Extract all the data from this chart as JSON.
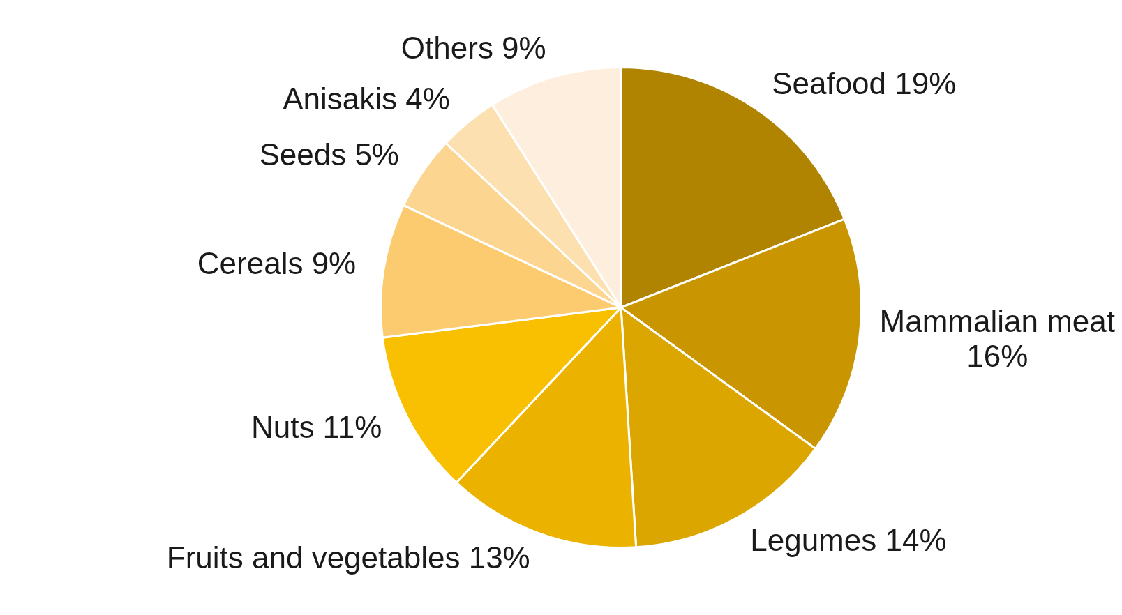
{
  "chart_data": {
    "type": "pie",
    "categories": [
      "Seafood",
      "Mammalian meat",
      "Legumes",
      "Fruits and vegetables",
      "Nuts",
      "Cereals",
      "Seeds",
      "Anisakis",
      "Others"
    ],
    "values": [
      19,
      16,
      14,
      13,
      11,
      9,
      5,
      4,
      9
    ],
    "value_labels": [
      "19%",
      "16%",
      "14%",
      "13%",
      "11%",
      "9%",
      "5%",
      "4%",
      "9%"
    ],
    "colors": [
      "#b08400",
      "#c99500",
      "#dca600",
      "#ebb300",
      "#f8c000",
      "#fccb70",
      "#fcd690",
      "#fde0b0",
      "#fdeedd"
    ],
    "legend": false
  }
}
